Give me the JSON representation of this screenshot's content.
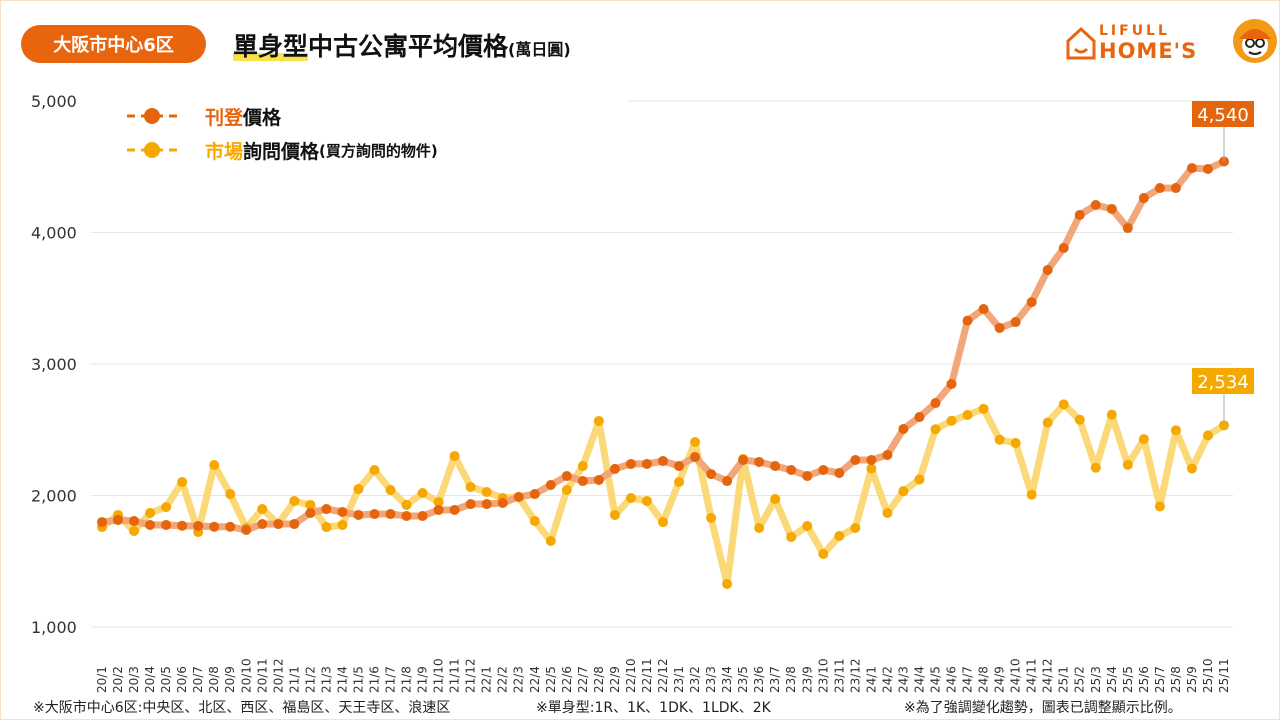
{
  "header": {
    "region_badge": "大阪市中心6区",
    "title_highlight": "單身型",
    "title_rest": "中古公寓平均價格",
    "title_unit": "(萬日圓)"
  },
  "logo": {
    "line1": "LIFULL",
    "line2": "HOME'S"
  },
  "legend": {
    "listing_accent": "刊登",
    "listing_rest": "價格",
    "inquiry_accent": "市場",
    "inquiry_rest": "詢問價格",
    "inquiry_note": "(買方詢問的物件)"
  },
  "footnotes": {
    "areas": "※大阪市中心6区:中央区、北区、西区、福島区、天王寺区、浪速区",
    "types": "※單身型:1R、1K、1DK、1LDK、2K",
    "scale_note": "※為了強調變化趨勢，圖表已調整顯示比例。"
  },
  "colors": {
    "listing": "#E5640E",
    "listing_line": "#F2A77A",
    "inquiry": "#F5A800",
    "inquiry_line": "#FBD878",
    "badge": "#E8650E"
  },
  "chart_data": {
    "type": "line",
    "title": "單身型中古公寓平均價格(萬日圓)",
    "xlabel": "",
    "ylabel": "",
    "ylim": [
      1000,
      5000
    ],
    "yticks": [
      "1,000",
      "2,000",
      "3,000",
      "4,000",
      "5,000"
    ],
    "ytick_values": [
      1000,
      2000,
      3000,
      4000,
      5000
    ],
    "grid": true,
    "legend_position": "top-left",
    "categories": [
      "20/1",
      "20/2",
      "20/3",
      "20/4",
      "20/5",
      "20/6",
      "20/7",
      "20/8",
      "20/9",
      "20/10",
      "20/11",
      "20/12",
      "21/1",
      "21/2",
      "21/3",
      "21/4",
      "21/5",
      "21/6",
      "21/7",
      "21/8",
      "21/9",
      "21/10",
      "21/11",
      "21/12",
      "22/1",
      "22/2",
      "22/3",
      "22/4",
      "22/5",
      "22/6",
      "22/7",
      "22/8",
      "22/9",
      "22/10",
      "22/11",
      "22/12",
      "23/1",
      "23/2",
      "23/3",
      "23/4",
      "23/5",
      "23/6",
      "23/7",
      "23/8",
      "23/9",
      "23/10",
      "23/11",
      "23/12",
      "24/1",
      "24/2",
      "24/3",
      "24/4",
      "24/5",
      "24/6",
      "24/7",
      "24/8",
      "24/9",
      "24/10",
      "24/11",
      "24/12",
      "25/1",
      "25/2",
      "25/3",
      "25/4",
      "25/5",
      "25/6",
      "25/7",
      "25/8",
      "25/9",
      "25/10",
      "25/11"
    ],
    "series": [
      {
        "name": "刊登價格",
        "end_label": "4,540",
        "values": [
          1798,
          1814,
          1806,
          1776,
          1776,
          1770,
          1768,
          1762,
          1762,
          1738,
          1783,
          1783,
          1783,
          1867,
          1897,
          1875,
          1852,
          1859,
          1859,
          1844,
          1844,
          1890,
          1890,
          1935,
          1935,
          1943,
          1989,
          2011,
          2080,
          2148,
          2110,
          2118,
          2202,
          2240,
          2240,
          2262,
          2224,
          2293,
          2163,
          2110,
          2270,
          2255,
          2224,
          2194,
          2148,
          2194,
          2171,
          2270,
          2270,
          2308,
          2506,
          2597,
          2703,
          2848,
          3330,
          3418,
          3274,
          3319,
          3471,
          3715,
          3882,
          4133,
          4209,
          4179,
          4034,
          4262,
          4338,
          4338,
          4490,
          4483,
          4540
        ]
      },
      {
        "name": "市場詢問價格(買方詢問的物件)",
        "end_label": "2,534",
        "values": [
          1760,
          1852,
          1730,
          1867,
          1912,
          2103,
          1722,
          2232,
          2011,
          1753,
          1897,
          1783,
          1958,
          1928,
          1760,
          1776,
          2049,
          2194,
          2042,
          1928,
          2019,
          1950,
          2300,
          2065,
          2027,
          1981,
          1989,
          1806,
          1654,
          2042,
          2224,
          2567,
          1852,
          1981,
          1958,
          1798,
          2103,
          2407,
          1829,
          1327,
          2278,
          1753,
          1973,
          1684,
          1768,
          1555,
          1692,
          1753,
          2205,
          1867,
          2033,
          2122,
          2504,
          2568,
          2612,
          2659,
          2424,
          2399,
          2006,
          2554,
          2693,
          2576,
          2211,
          2615,
          2233,
          2429,
          1917,
          2496,
          2205,
          2457,
          2534
        ]
      }
    ]
  }
}
